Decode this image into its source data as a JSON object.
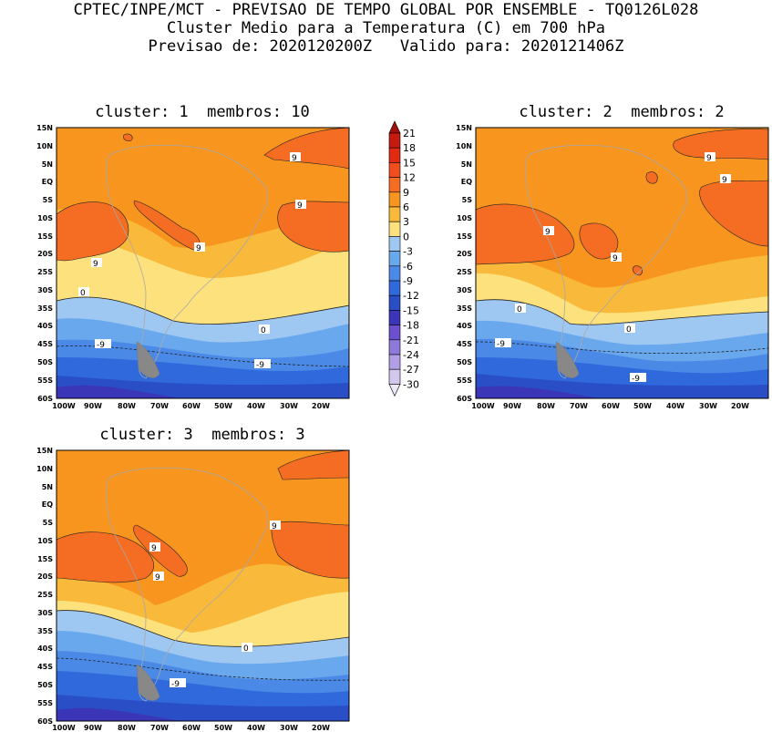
{
  "header": {
    "line1": "CPTEC/INPE/MCT - PREVISAO DE TEMPO GLOBAL POR ENSEMBLE - TQ0126L028",
    "line2": "Cluster Medio para a Temperatura (C) em 700 hPa",
    "line3": "Previsao de: 2020120200Z   Valido para: 2020121406Z"
  },
  "panels": [
    {
      "title": "cluster: 1  membros: 10",
      "labels": {
        "a": "9",
        "b": "9",
        "c": "9",
        "d": "9",
        "e": "0",
        "f": "0",
        "g": "-9",
        "h": "-9"
      }
    },
    {
      "title": "cluster: 2  membros: 2",
      "labels": {
        "a": "9",
        "b": "9",
        "c": "9",
        "d": "9",
        "e": "0",
        "f": "0",
        "g": "-9",
        "h": "-9"
      }
    },
    {
      "title": "cluster: 3  membros: 3",
      "labels": {
        "a": "9",
        "b": "9",
        "c": "9",
        "e": "0",
        "h": "-9"
      }
    }
  ],
  "lat_ticks": [
    "15N",
    "10N",
    "5N",
    "EQ",
    "5S",
    "10S",
    "15S",
    "20S",
    "25S",
    "30S",
    "35S",
    "40S",
    "45S",
    "50S",
    "55S",
    "60S"
  ],
  "lon_ticks": [
    "100W",
    "90W",
    "80W",
    "70W",
    "60W",
    "50W",
    "40W",
    "30W",
    "20W"
  ],
  "colorbar": {
    "labels": [
      "21",
      "18",
      "15",
      "12",
      "9",
      "6",
      "3",
      "0",
      "-3",
      "-6",
      "-9",
      "-12",
      "-15",
      "-18",
      "-21",
      "-24",
      "-27",
      "-30"
    ],
    "colors": [
      "#a3100b",
      "#c41a10",
      "#e02a12",
      "#f24d1c",
      "#f46d22",
      "#f7951f",
      "#f9b93a",
      "#fde17d",
      "#9ec8f2",
      "#6aa8ee",
      "#4a8ae6",
      "#3069dc",
      "#2a4ec5",
      "#3b35b8",
      "#6c50cf",
      "#8e78d9",
      "#b19ee4",
      "#d2c8ee",
      "#ece8f6"
    ]
  }
}
